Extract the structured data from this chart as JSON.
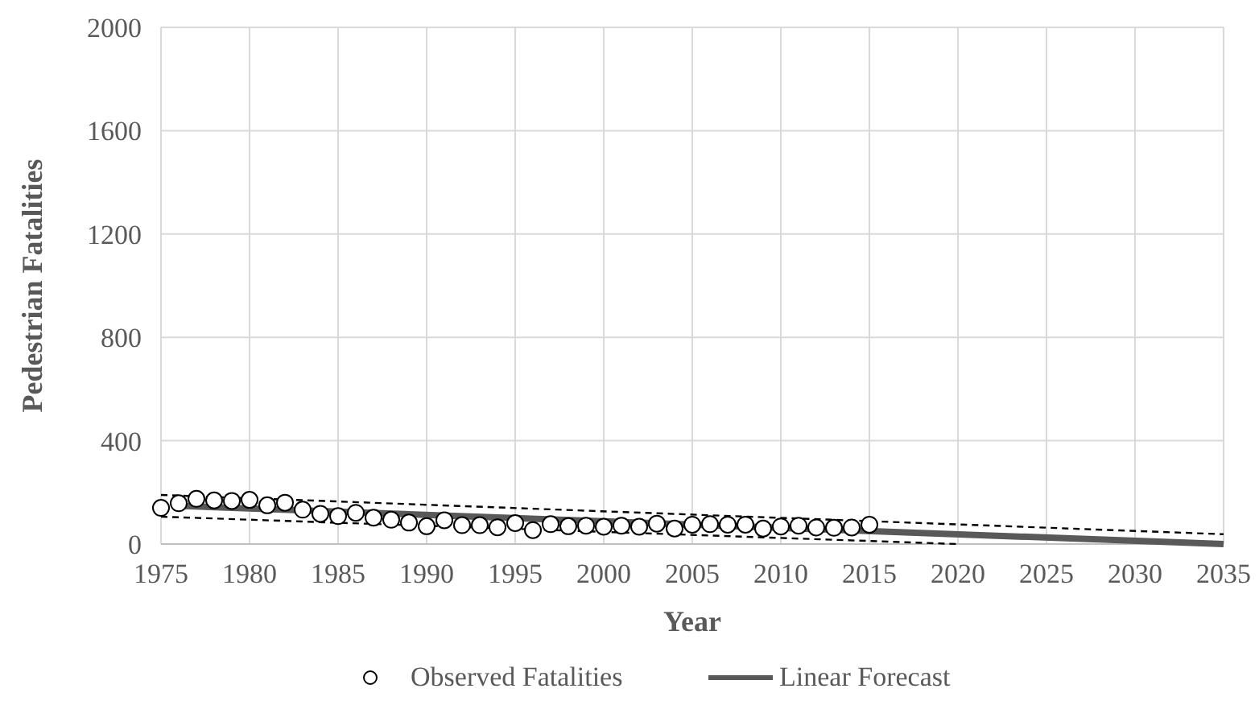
{
  "chart_data": {
    "type": "scatter",
    "xlabel": "Year",
    "ylabel": "Pedestrian Fatalities",
    "xlim": [
      1975,
      2035
    ],
    "xticks": [
      1975,
      1980,
      1985,
      1990,
      1995,
      2000,
      2005,
      2010,
      2015,
      2020,
      2025,
      2030,
      2035
    ],
    "ylim": [
      0,
      2000
    ],
    "yticks": [
      0,
      400,
      800,
      1200,
      1600,
      2000
    ],
    "grid": true,
    "legend": "bottom",
    "series": [
      {
        "name": "Observed Fatalities",
        "marker": "circle",
        "color": "#000000",
        "x": [
          1975,
          1976,
          1977,
          1978,
          1979,
          1980,
          1981,
          1982,
          1983,
          1984,
          1985,
          1986,
          1987,
          1988,
          1989,
          1990,
          1991,
          1992,
          1993,
          1994,
          1995,
          1996,
          1997,
          1998,
          1999,
          2000,
          2001,
          2002,
          2003,
          2004,
          2005,
          2006,
          2007,
          2008,
          2009,
          2010,
          2011,
          2012,
          2013,
          2014,
          2015
        ],
        "values": [
          140,
          158,
          175,
          169,
          167,
          171,
          150,
          160,
          133,
          117,
          108,
          121,
          102,
          94,
          83,
          69,
          92,
          73,
          73,
          65,
          81,
          54,
          77,
          69,
          71,
          67,
          71,
          67,
          79,
          60,
          75,
          77,
          75,
          75,
          60,
          68,
          71,
          64,
          63,
          64,
          75
        ]
      },
      {
        "name": "Linear Forecast",
        "type": "line",
        "color": "#595959",
        "line_style": "solid",
        "x": [
          1976,
          2035
        ],
        "values": [
          148,
          0
        ]
      },
      {
        "type": "line",
        "color": "#000000",
        "line_style": "dashed",
        "x": [
          1975,
          2035
        ],
        "values": [
          190,
          38
        ]
      },
      {
        "type": "line",
        "color": "#000000",
        "line_style": "dashed",
        "x": [
          1975,
          2020
        ],
        "values": [
          106,
          0
        ]
      }
    ]
  }
}
